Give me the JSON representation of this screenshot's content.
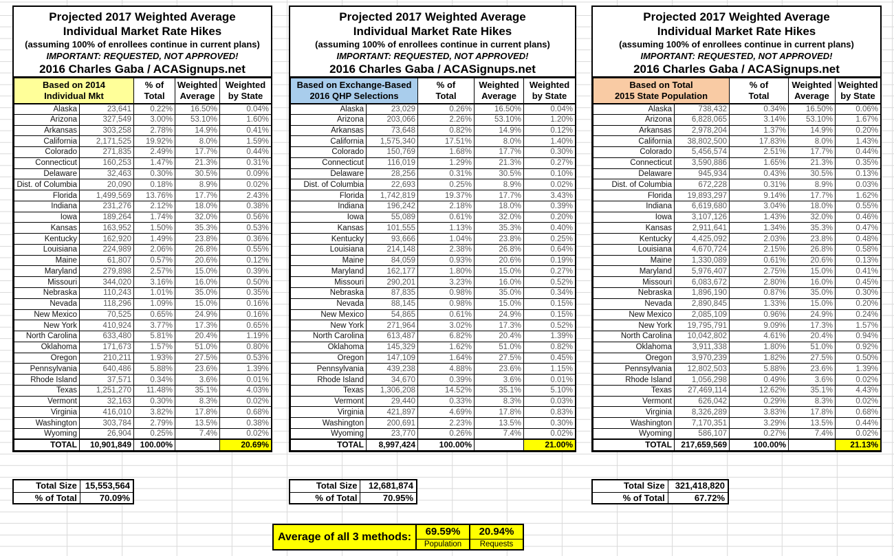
{
  "title_block": {
    "line1": "Projected 2017 Weighted Average",
    "line2": "Individual Market Rate Hikes",
    "line3": "(assuming 100% of enrollees continue in current plans)",
    "line4": "IMPORTANT: REQUESTED, NOT APPROVED!",
    "line5": "2016 Charles Gaba / ACASignups.net"
  },
  "shared_columns": {
    "pct_l1": "% of",
    "pct_l2": "Total",
    "wavg_l1": "Weighted",
    "wavg_l2": "Average",
    "wstate_l1": "Weighted",
    "wstate_l2": "by State"
  },
  "colors": {
    "highlight_yellow": "#ffff00",
    "header_yellow": "#ffff99",
    "header_blue": "#a9cdec",
    "header_orange": "#f9cba4"
  },
  "tables": [
    {
      "basis_line1": "Based on 2014",
      "basis_line2": "Individual Mkt",
      "header_color": "#ffff99",
      "rows": [
        [
          "Alaska",
          "23,641",
          "0.22%",
          "16.50%",
          "0.04%"
        ],
        [
          "Arizona",
          "327,549",
          "3.00%",
          "53.10%",
          "1.60%"
        ],
        [
          "Arkansas",
          "303,258",
          "2.78%",
          "14.9%",
          "0.41%"
        ],
        [
          "California",
          "2,171,525",
          "19.92%",
          "8.0%",
          "1.59%"
        ],
        [
          "Colorado",
          "271,835",
          "2.49%",
          "17.7%",
          "0.44%"
        ],
        [
          "Connecticut",
          "160,253",
          "1.47%",
          "21.3%",
          "0.31%"
        ],
        [
          "Delaware",
          "32,463",
          "0.30%",
          "30.5%",
          "0.09%"
        ],
        [
          "Dist. of Columbia",
          "20,090",
          "0.18%",
          "8.9%",
          "0.02%"
        ],
        [
          "Florida",
          "1,499,569",
          "13.76%",
          "17.7%",
          "2.43%"
        ],
        [
          "Indiana",
          "231,276",
          "2.12%",
          "18.0%",
          "0.38%"
        ],
        [
          "Iowa",
          "189,264",
          "1.74%",
          "32.0%",
          "0.56%"
        ],
        [
          "Kansas",
          "163,952",
          "1.50%",
          "35.3%",
          "0.53%"
        ],
        [
          "Kentucky",
          "162,920",
          "1.49%",
          "23.8%",
          "0.36%"
        ],
        [
          "Louisiana",
          "224,989",
          "2.06%",
          "26.8%",
          "0.55%"
        ],
        [
          "Maine",
          "61,807",
          "0.57%",
          "20.6%",
          "0.12%"
        ],
        [
          "Maryland",
          "279,898",
          "2.57%",
          "15.0%",
          "0.39%"
        ],
        [
          "Missouri",
          "344,020",
          "3.16%",
          "16.0%",
          "0.50%"
        ],
        [
          "Nebraska",
          "110,243",
          "1.01%",
          "35.0%",
          "0.35%"
        ],
        [
          "Nevada",
          "118,296",
          "1.09%",
          "15.0%",
          "0.16%"
        ],
        [
          "New Mexico",
          "70,525",
          "0.65%",
          "24.9%",
          "0.16%"
        ],
        [
          "New York",
          "410,924",
          "3.77%",
          "17.3%",
          "0.65%"
        ],
        [
          "North Carolina",
          "633,480",
          "5.81%",
          "20.4%",
          "1.19%"
        ],
        [
          "Oklahoma",
          "171,673",
          "1.57%",
          "51.0%",
          "0.80%"
        ],
        [
          "Oregon",
          "210,211",
          "1.93%",
          "27.5%",
          "0.53%"
        ],
        [
          "Pennsylvania",
          "640,486",
          "5.88%",
          "23.6%",
          "1.39%"
        ],
        [
          "Rhode Island",
          "37,571",
          "0.34%",
          "3.6%",
          "0.01%"
        ],
        [
          "Texas",
          "1,251,270",
          "11.48%",
          "35.1%",
          "4.03%"
        ],
        [
          "Vermont",
          "32,163",
          "0.30%",
          "8.3%",
          "0.02%"
        ],
        [
          "Virginia",
          "416,010",
          "3.82%",
          "17.8%",
          "0.68%"
        ],
        [
          "Washington",
          "303,784",
          "2.79%",
          "13.5%",
          "0.38%"
        ],
        [
          "Wyoming",
          "26,904",
          "0.25%",
          "7.4%",
          "0.02%"
        ]
      ],
      "total": [
        "TOTAL",
        "10,901,849",
        "100.00%",
        "",
        "20.69%"
      ],
      "summary": {
        "size_label": "Total Size",
        "size_value": "15,553,564",
        "pct_label": "% of Total",
        "pct_value": "70.09%"
      }
    },
    {
      "basis_line1": "Based on Exchange-Based",
      "basis_line2": "2016 QHP Selections",
      "header_color": "#a9cdec",
      "rows": [
        [
          "Alaska",
          "23,029",
          "0.26%",
          "16.50%",
          "0.04%"
        ],
        [
          "Arizona",
          "203,066",
          "2.26%",
          "53.10%",
          "1.20%"
        ],
        [
          "Arkansas",
          "73,648",
          "0.82%",
          "14.9%",
          "0.12%"
        ],
        [
          "California",
          "1,575,340",
          "17.51%",
          "8.0%",
          "1.40%"
        ],
        [
          "Colorado",
          "150,769",
          "1.68%",
          "17.7%",
          "0.30%"
        ],
        [
          "Connecticut",
          "116,019",
          "1.29%",
          "21.3%",
          "0.27%"
        ],
        [
          "Delaware",
          "28,256",
          "0.31%",
          "30.5%",
          "0.10%"
        ],
        [
          "Dist. of Columbia",
          "22,693",
          "0.25%",
          "8.9%",
          "0.02%"
        ],
        [
          "Florida",
          "1,742,819",
          "19.37%",
          "17.7%",
          "3.43%"
        ],
        [
          "Indiana",
          "196,242",
          "2.18%",
          "18.0%",
          "0.39%"
        ],
        [
          "Iowa",
          "55,089",
          "0.61%",
          "32.0%",
          "0.20%"
        ],
        [
          "Kansas",
          "101,555",
          "1.13%",
          "35.3%",
          "0.40%"
        ],
        [
          "Kentucky",
          "93,666",
          "1.04%",
          "23.8%",
          "0.25%"
        ],
        [
          "Louisiana",
          "214,148",
          "2.38%",
          "26.8%",
          "0.64%"
        ],
        [
          "Maine",
          "84,059",
          "0.93%",
          "20.6%",
          "0.19%"
        ],
        [
          "Maryland",
          "162,177",
          "1.80%",
          "15.0%",
          "0.27%"
        ],
        [
          "Missouri",
          "290,201",
          "3.23%",
          "16.0%",
          "0.52%"
        ],
        [
          "Nebraska",
          "87,835",
          "0.98%",
          "35.0%",
          "0.34%"
        ],
        [
          "Nevada",
          "88,145",
          "0.98%",
          "15.0%",
          "0.15%"
        ],
        [
          "New Mexico",
          "54,865",
          "0.61%",
          "24.9%",
          "0.15%"
        ],
        [
          "New York",
          "271,964",
          "3.02%",
          "17.3%",
          "0.52%"
        ],
        [
          "North Carolina",
          "613,487",
          "6.82%",
          "20.4%",
          "1.39%"
        ],
        [
          "Oklahoma",
          "145,329",
          "1.62%",
          "51.0%",
          "0.82%"
        ],
        [
          "Oregon",
          "147,109",
          "1.64%",
          "27.5%",
          "0.45%"
        ],
        [
          "Pennsylvania",
          "439,238",
          "4.88%",
          "23.6%",
          "1.15%"
        ],
        [
          "Rhode Island",
          "34,670",
          "0.39%",
          "3.6%",
          "0.01%"
        ],
        [
          "Texas",
          "1,306,208",
          "14.52%",
          "35.1%",
          "5.10%"
        ],
        [
          "Vermont",
          "29,440",
          "0.33%",
          "8.3%",
          "0.03%"
        ],
        [
          "Virginia",
          "421,897",
          "4.69%",
          "17.8%",
          "0.83%"
        ],
        [
          "Washington",
          "200,691",
          "2.23%",
          "13.5%",
          "0.30%"
        ],
        [
          "Wyoming",
          "23,770",
          "0.26%",
          "7.4%",
          "0.02%"
        ]
      ],
      "total": [
        "TOTAL",
        "8,997,424",
        "100.00%",
        "",
        "21.00%"
      ],
      "summary": {
        "size_label": "Total Size",
        "size_value": "12,681,874",
        "pct_label": "% of Total",
        "pct_value": "70.95%"
      }
    },
    {
      "basis_line1": "Based on Total",
      "basis_line2": "2015 State Population",
      "header_color": "#f9cba4",
      "rows": [
        [
          "Alaska",
          "738,432",
          "0.34%",
          "16.50%",
          "0.06%"
        ],
        [
          "Arizona",
          "6,828,065",
          "3.14%",
          "53.10%",
          "1.67%"
        ],
        [
          "Arkansas",
          "2,978,204",
          "1.37%",
          "14.9%",
          "0.20%"
        ],
        [
          "California",
          "38,802,500",
          "17.83%",
          "8.0%",
          "1.43%"
        ],
        [
          "Colorado",
          "5,456,574",
          "2.51%",
          "17.7%",
          "0.44%"
        ],
        [
          "Connecticut",
          "3,590,886",
          "1.65%",
          "21.3%",
          "0.35%"
        ],
        [
          "Delaware",
          "945,934",
          "0.43%",
          "30.5%",
          "0.13%"
        ],
        [
          "Dist. of Columbia",
          "672,228",
          "0.31%",
          "8.9%",
          "0.03%"
        ],
        [
          "Florida",
          "19,893,297",
          "9.14%",
          "17.7%",
          "1.62%"
        ],
        [
          "Indiana",
          "6,619,680",
          "3.04%",
          "18.0%",
          "0.55%"
        ],
        [
          "Iowa",
          "3,107,126",
          "1.43%",
          "32.0%",
          "0.46%"
        ],
        [
          "Kansas",
          "2,911,641",
          "1.34%",
          "35.3%",
          "0.47%"
        ],
        [
          "Kentucky",
          "4,425,092",
          "2.03%",
          "23.8%",
          "0.48%"
        ],
        [
          "Louisiana",
          "4,670,724",
          "2.15%",
          "26.8%",
          "0.58%"
        ],
        [
          "Maine",
          "1,330,089",
          "0.61%",
          "20.6%",
          "0.13%"
        ],
        [
          "Maryland",
          "5,976,407",
          "2.75%",
          "15.0%",
          "0.41%"
        ],
        [
          "Missouri",
          "6,083,672",
          "2.80%",
          "16.0%",
          "0.45%"
        ],
        [
          "Nebraska",
          "1,896,190",
          "0.87%",
          "35.0%",
          "0.30%"
        ],
        [
          "Nevada",
          "2,890,845",
          "1.33%",
          "15.0%",
          "0.20%"
        ],
        [
          "New Mexico",
          "2,085,109",
          "0.96%",
          "24.9%",
          "0.24%"
        ],
        [
          "New York",
          "19,795,791",
          "9.09%",
          "17.3%",
          "1.57%"
        ],
        [
          "North Carolina",
          "10,042,802",
          "4.61%",
          "20.4%",
          "0.94%"
        ],
        [
          "Oklahoma",
          "3,911,338",
          "1.80%",
          "51.0%",
          "0.92%"
        ],
        [
          "Oregon",
          "3,970,239",
          "1.82%",
          "27.5%",
          "0.50%"
        ],
        [
          "Pennsylvania",
          "12,802,503",
          "5.88%",
          "23.6%",
          "1.39%"
        ],
        [
          "Rhode Island",
          "1,056,298",
          "0.49%",
          "3.6%",
          "0.02%"
        ],
        [
          "Texas",
          "27,469,114",
          "12.62%",
          "35.1%",
          "4.43%"
        ],
        [
          "Vermont",
          "626,042",
          "0.29%",
          "8.3%",
          "0.02%"
        ],
        [
          "Virginia",
          "8,326,289",
          "3.83%",
          "17.8%",
          "0.68%"
        ],
        [
          "Washington",
          "7,170,351",
          "3.29%",
          "13.5%",
          "0.44%"
        ],
        [
          "Wyoming",
          "586,107",
          "0.27%",
          "7.4%",
          "0.02%"
        ]
      ],
      "total": [
        "TOTAL",
        "217,659,569",
        "100.00%",
        "",
        "21.13%"
      ],
      "summary": {
        "size_label": "Total Size",
        "size_value": "321,418,820",
        "pct_label": "% of Total",
        "pct_value": "67.72%"
      }
    }
  ],
  "footer": {
    "label": "Average of all 3 methods:",
    "cells": [
      {
        "value": "69.59%",
        "label": "Population"
      },
      {
        "value": "20.94%",
        "label": "Requests"
      }
    ]
  }
}
